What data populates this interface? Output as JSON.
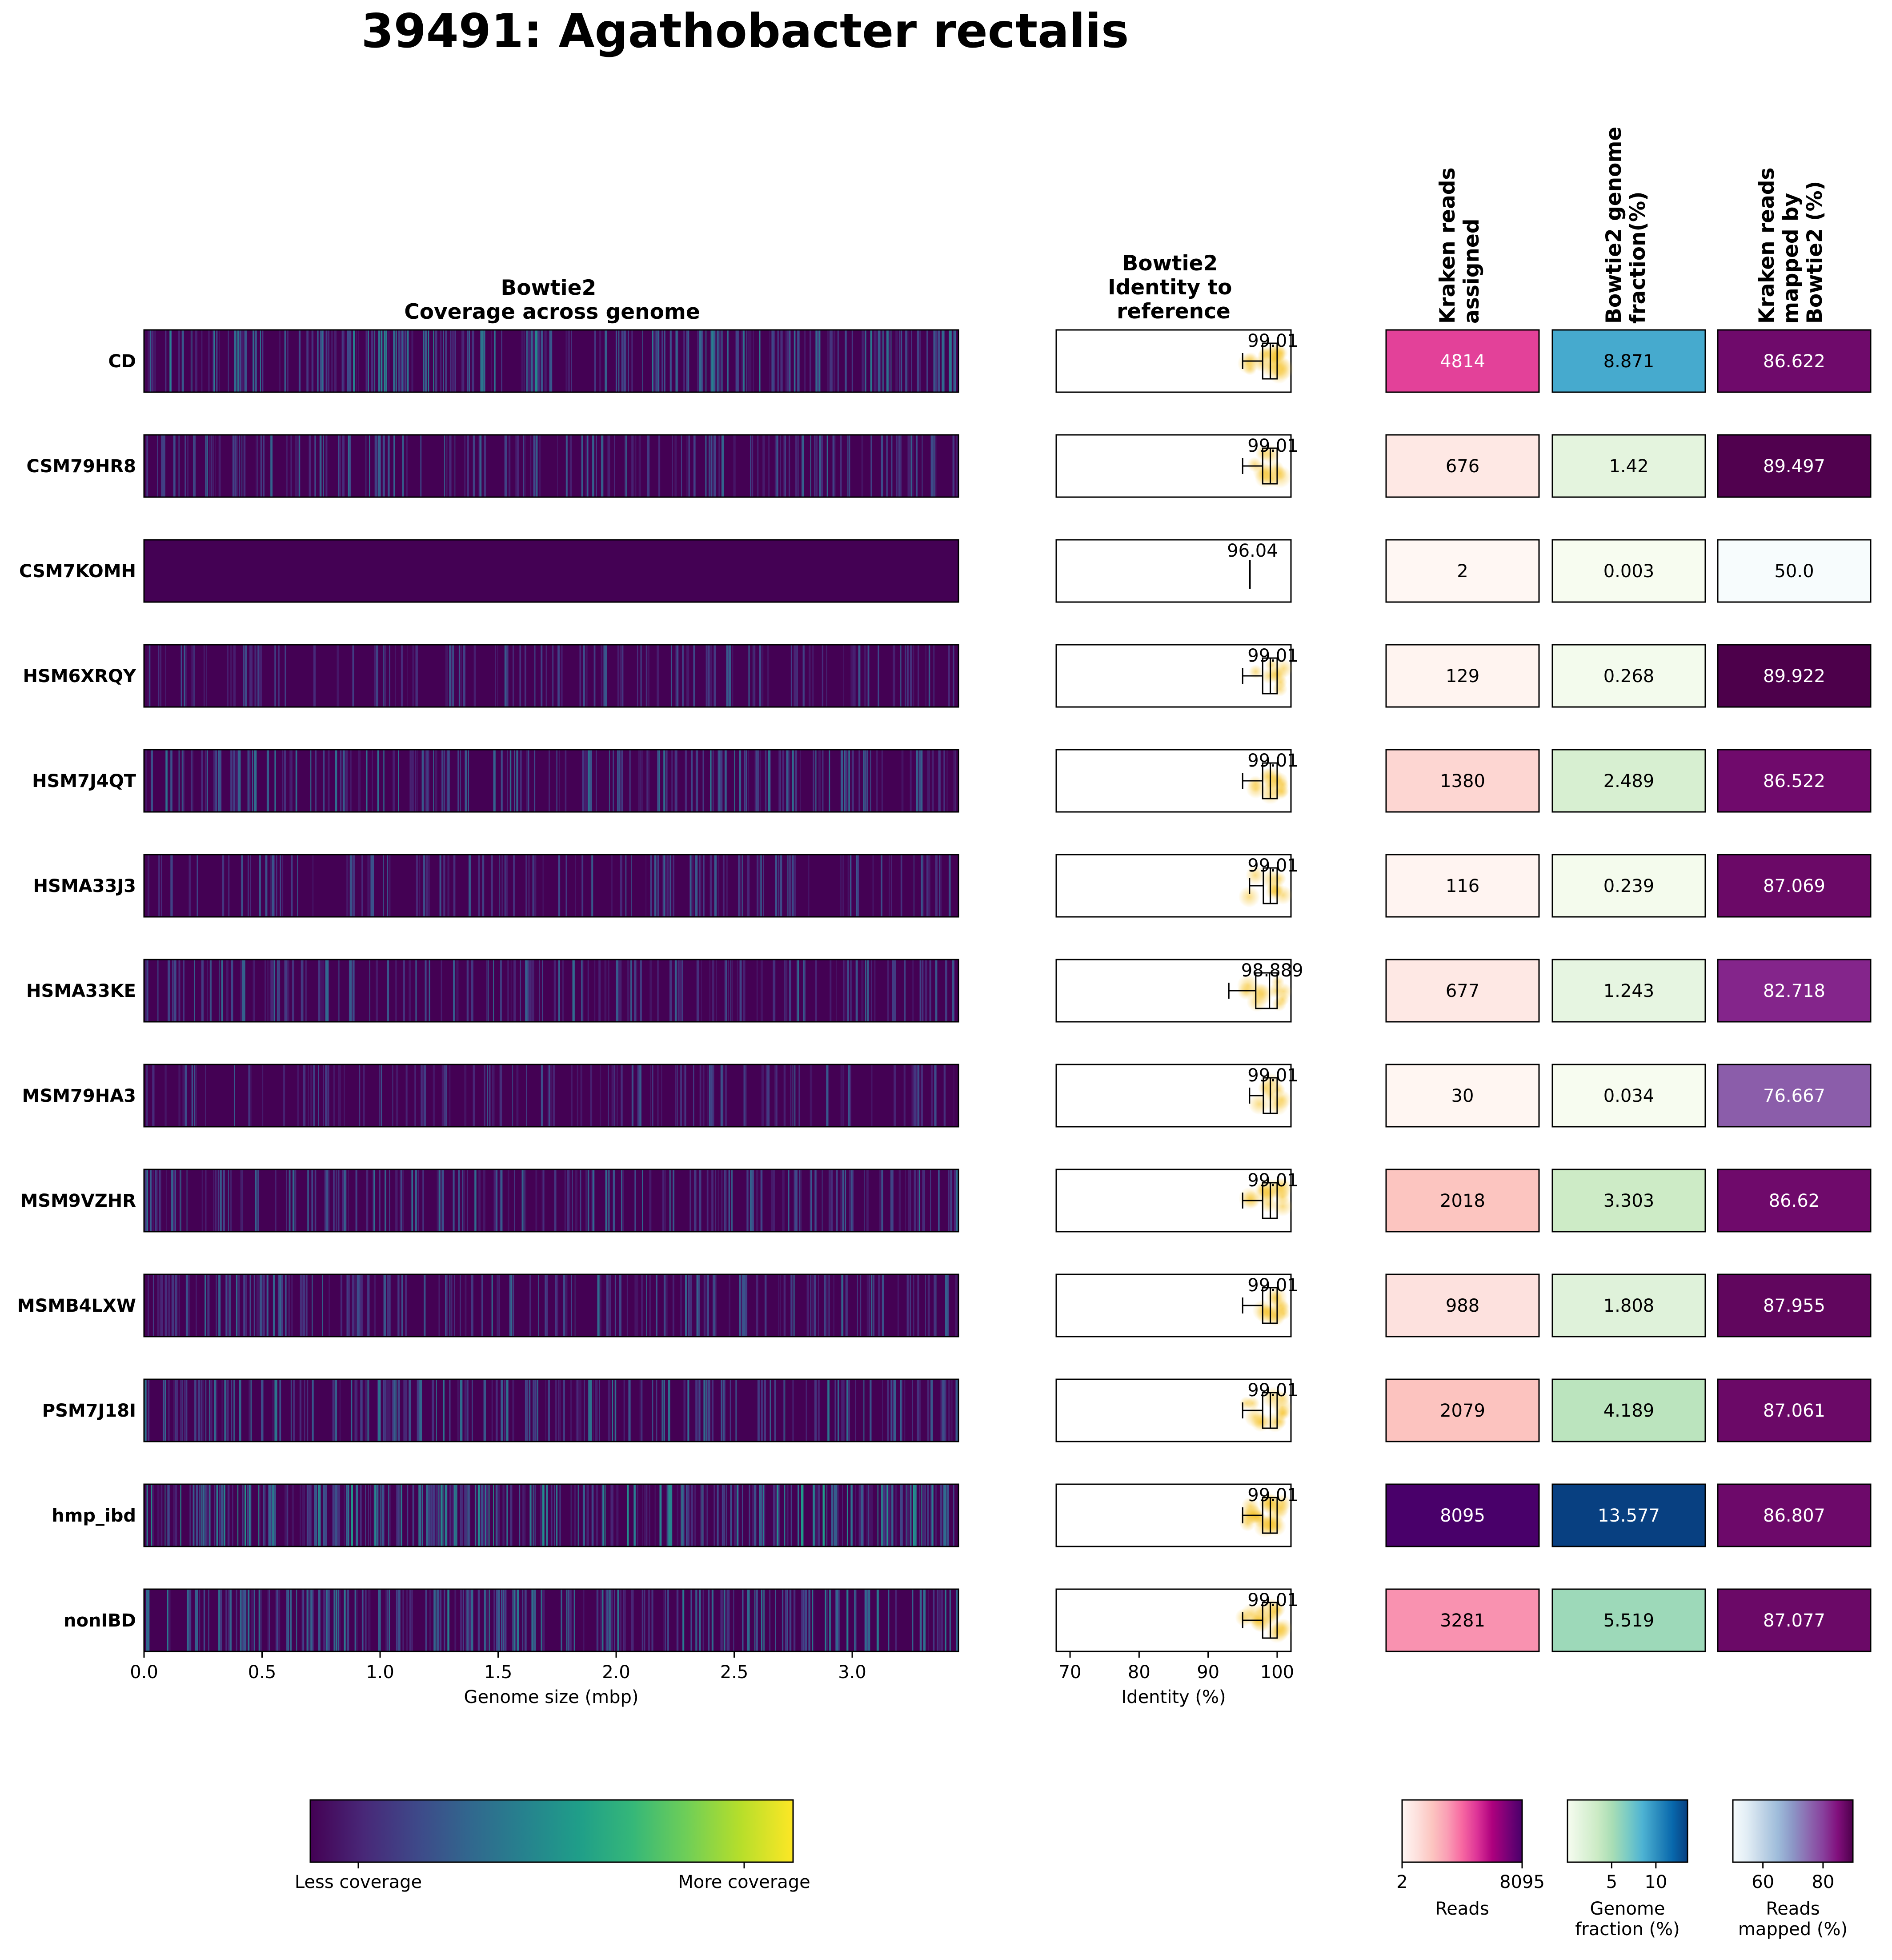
{
  "title": "39491: Agathobacter rectalis",
  "headers": {
    "coverage": [
      "Bowtie2",
      "Coverage across genome"
    ],
    "identity": [
      "Bowtie2",
      "Identity to",
      "reference"
    ],
    "kraken_reads": [
      "Kraken reads",
      "assigned"
    ],
    "genome_fraction": [
      "Bowtie2 genome",
      "fraction(%)"
    ],
    "reads_mapped": [
      "Kraken reads",
      "mapped by",
      "Bowtie2 (%)"
    ]
  },
  "colors": {
    "viridis": [
      "#440154",
      "#482878",
      "#3e4989",
      "#31688e",
      "#26828e",
      "#1f9e89",
      "#35b779",
      "#6ece58",
      "#b5de2b",
      "#fde725"
    ],
    "rdpu": [
      "#fff7f3",
      "#fde0dd",
      "#fcc5c0",
      "#fa9fb5",
      "#f768a1",
      "#dd3497",
      "#ae017e",
      "#7a0177",
      "#49006a"
    ],
    "gnbu": [
      "#f7fcf0",
      "#e0f3db",
      "#ccebc5",
      "#a8ddb5",
      "#7bccc4",
      "#4eb3d3",
      "#2b8cbe",
      "#0868ac",
      "#084081"
    ],
    "bupu": [
      "#f7fcfd",
      "#e0ecf4",
      "#bfd3e6",
      "#9ebcda",
      "#8c96c6",
      "#8c6bb1",
      "#88419d",
      "#810f7c",
      "#4d004b"
    ],
    "point_color": "#f5c022"
  },
  "chart_data": {
    "type": "heatmap",
    "title": "39491: Agathobacter rectalis",
    "samples": [
      "CD",
      "CSM79HR8",
      "CSM7KOMH",
      "HSM6XRQY",
      "HSM7J4QT",
      "HSMA33J3",
      "HSMA33KE",
      "MSM79HA3",
      "MSM9VZHR",
      "MSMB4LXW",
      "PSM7J18I",
      "hmp_ibd",
      "nonIBD"
    ],
    "coverage": {
      "xlabel": "Genome size (mbp)",
      "xlim": [
        0.0,
        3.45
      ],
      "xticks": [
        "0.0",
        "0.5",
        "1.0",
        "1.5",
        "2.0",
        "2.5",
        "3.0"
      ],
      "xtick_values": [
        0.0,
        0.5,
        1.0,
        1.5,
        2.0,
        2.5,
        3.0
      ],
      "relative_coverage_level": [
        0.3,
        0.12,
        0.0,
        0.05,
        0.16,
        0.06,
        0.12,
        0.04,
        0.16,
        0.13,
        0.19,
        0.42,
        0.24
      ],
      "colorbar_labels": [
        "Less coverage",
        "More coverage"
      ]
    },
    "identity": {
      "xlabel": "Identity (%)",
      "xlim": [
        68,
        102
      ],
      "xticks": [
        "70",
        "80",
        "90",
        "100"
      ],
      "xtick_values": [
        70,
        80,
        90,
        100
      ],
      "median_labels": [
        "99.01",
        "99.01",
        "96.04",
        "99.01",
        "99.01",
        "99.01",
        "98.889",
        "99.01",
        "99.01",
        "99.01",
        "99.01",
        "99.01",
        "99.01"
      ],
      "box": [
        {
          "whisker_low": 95.0,
          "q1": 97.9,
          "median": 99.01,
          "q3": 100.0,
          "whisker_high": 100.0
        },
        {
          "whisker_low": 95.0,
          "q1": 97.9,
          "median": 99.01,
          "q3": 100.0,
          "whisker_high": 100.0
        },
        {
          "whisker_low": 96.04,
          "q1": 96.04,
          "median": 96.04,
          "q3": 96.04,
          "whisker_high": 96.04
        },
        {
          "whisker_low": 95.0,
          "q1": 97.9,
          "median": 99.01,
          "q3": 100.0,
          "whisker_high": 100.0
        },
        {
          "whisker_low": 95.0,
          "q1": 97.9,
          "median": 99.01,
          "q3": 100.0,
          "whisker_high": 100.0
        },
        {
          "whisker_low": 96.0,
          "q1": 98.0,
          "median": 99.01,
          "q3": 100.0,
          "whisker_high": 100.0
        },
        {
          "whisker_low": 93.0,
          "q1": 96.9,
          "median": 98.889,
          "q3": 100.0,
          "whisker_high": 100.0
        },
        {
          "whisker_low": 96.0,
          "q1": 98.0,
          "median": 99.01,
          "q3": 100.0,
          "whisker_high": 100.0
        },
        {
          "whisker_low": 95.0,
          "q1": 97.9,
          "median": 99.01,
          "q3": 100.0,
          "whisker_high": 100.0
        },
        {
          "whisker_low": 95.0,
          "q1": 97.9,
          "median": 99.01,
          "q3": 100.0,
          "whisker_high": 100.0
        },
        {
          "whisker_low": 95.0,
          "q1": 97.9,
          "median": 99.01,
          "q3": 100.0,
          "whisker_high": 100.0
        },
        {
          "whisker_low": 95.0,
          "q1": 97.9,
          "median": 99.01,
          "q3": 100.0,
          "whisker_high": 100.0
        },
        {
          "whisker_low": 95.0,
          "q1": 97.9,
          "median": 99.01,
          "q3": 100.0,
          "whisker_high": 100.0
        }
      ]
    },
    "kraken_reads_assigned": {
      "values": [
        4814,
        676,
        2,
        129,
        1380,
        116,
        677,
        30,
        2018,
        988,
        2079,
        8095,
        3281
      ],
      "labels": [
        "4814",
        "676",
        "2",
        "129",
        "1380",
        "116",
        "677",
        "30",
        "2018",
        "988",
        "2079",
        "8095",
        "3281"
      ],
      "colorbar": {
        "label": "Reads",
        "min": 2,
        "max": 8095,
        "ticks": [
          "2",
          "8095"
        ],
        "tick_values": [
          2,
          8095
        ]
      }
    },
    "bowtie2_genome_fraction": {
      "values": [
        8.871,
        1.42,
        0.003,
        0.268,
        2.489,
        0.239,
        1.243,
        0.034,
        3.303,
        1.808,
        4.189,
        13.577,
        5.519
      ],
      "labels": [
        "8.871",
        "1.42",
        "0.003",
        "0.268",
        "2.489",
        "0.239",
        "1.243",
        "0.034",
        "3.303",
        "1.808",
        "4.189",
        "13.577",
        "5.519"
      ],
      "colorbar": {
        "label": [
          "Genome",
          "fraction (%)"
        ],
        "min": 0.003,
        "max": 13.577,
        "ticks": [
          "5",
          "10"
        ],
        "tick_values": [
          5,
          10
        ]
      }
    },
    "kraken_reads_mapped_by_bowtie2": {
      "values": [
        86.622,
        89.497,
        50.0,
        89.922,
        86.522,
        87.069,
        82.718,
        76.667,
        86.62,
        87.955,
        87.061,
        86.807,
        87.077
      ],
      "labels": [
        "86.622",
        "89.497",
        "50.0",
        "89.922",
        "86.522",
        "87.069",
        "82.718",
        "76.667",
        "86.62",
        "87.955",
        "87.061",
        "86.807",
        "87.077"
      ],
      "colorbar": {
        "label": [
          "Reads",
          "mapped (%)"
        ],
        "min": 50.0,
        "max": 89.922,
        "ticks": [
          "60",
          "80"
        ],
        "tick_values": [
          60,
          80
        ]
      }
    }
  }
}
